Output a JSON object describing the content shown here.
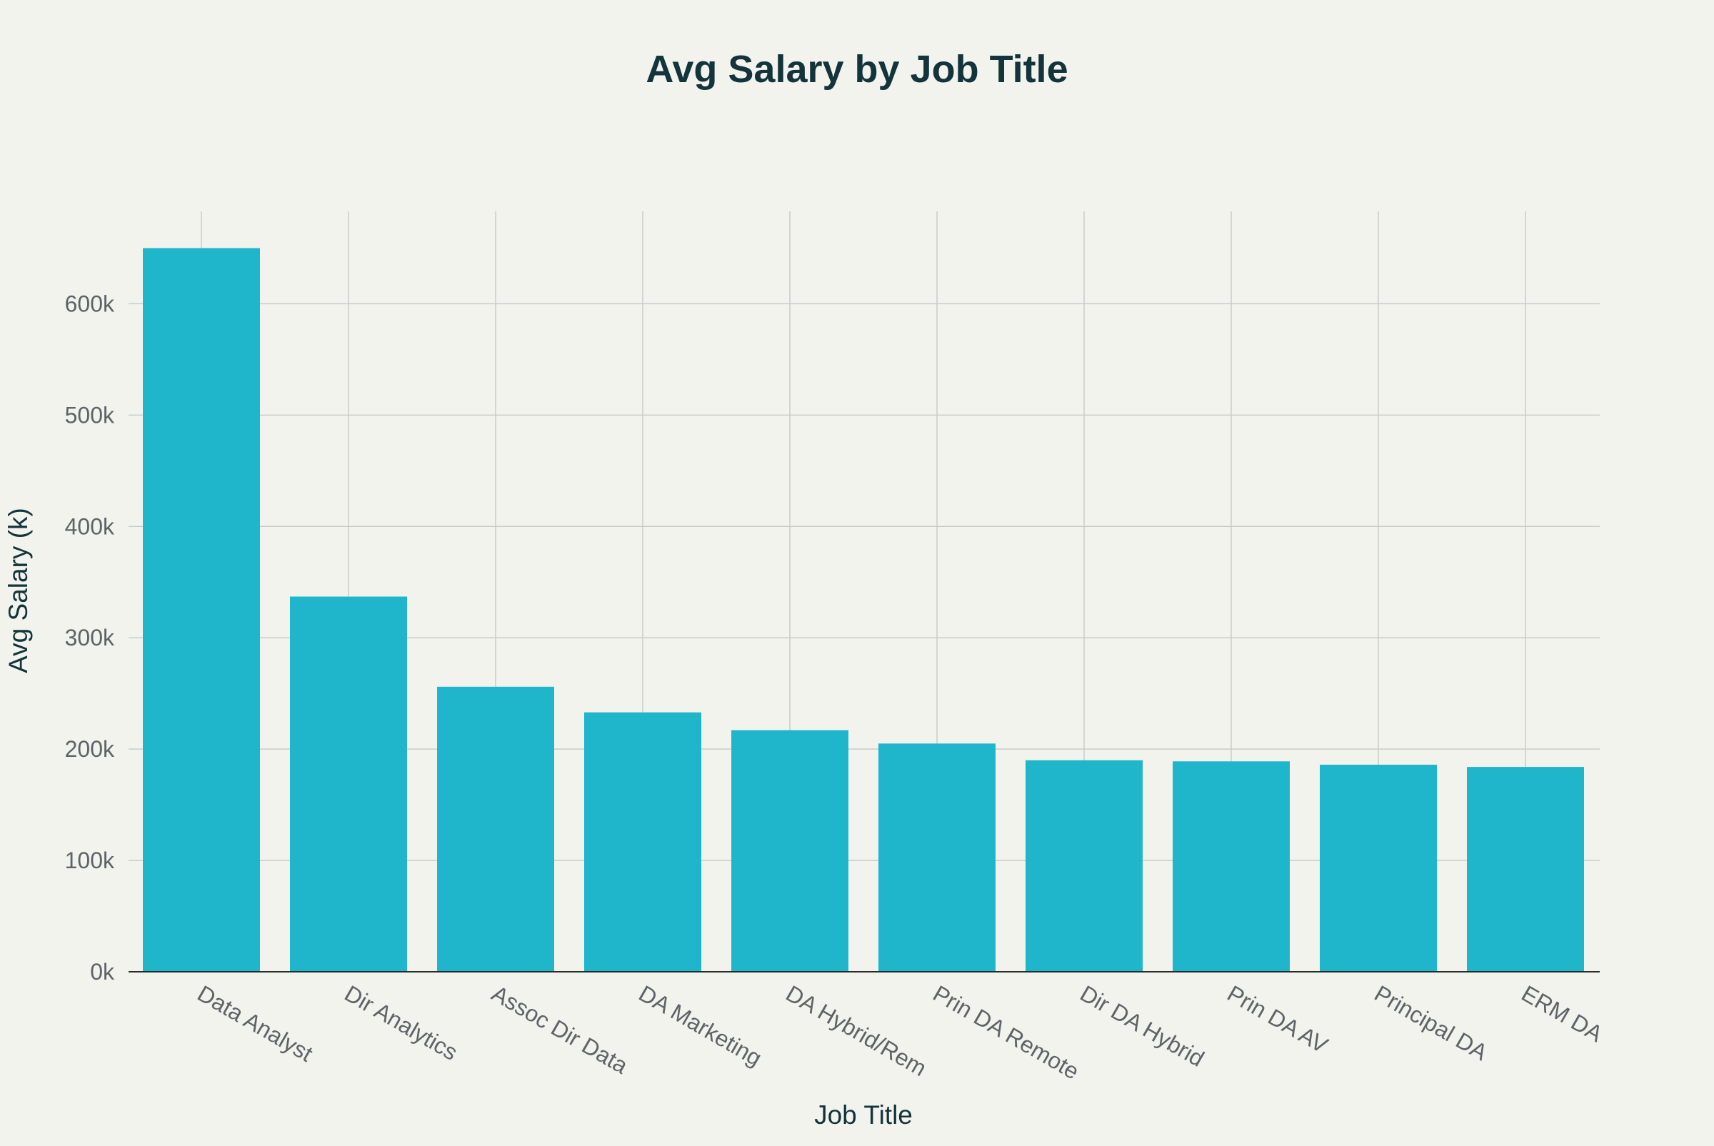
{
  "chart_data": {
    "type": "bar",
    "title": "Avg Salary by Job Title",
    "xlabel": "Job Title",
    "ylabel": "Avg Salary (k)",
    "categories": [
      "Data Analyst",
      "Dir Analytics",
      "Assoc Dir Data",
      "DA Marketing",
      "DA Hybrid/Rem",
      "Prin DA Remote",
      "Dir DA Hybrid",
      "Prin DA AV",
      "Principal DA",
      "ERM DA"
    ],
    "values": [
      650,
      337,
      256,
      233,
      217,
      205,
      190,
      189,
      186,
      184
    ],
    "ylim": [
      0,
      683
    ],
    "yticks": [
      0,
      100,
      200,
      300,
      400,
      500,
      600
    ],
    "ytick_labels": [
      "0k",
      "100k",
      "200k",
      "300k",
      "400k",
      "500k",
      "600k"
    ],
    "grid": true,
    "bar_color": "#1fb6cb",
    "background_color": "#f3f3ee"
  }
}
